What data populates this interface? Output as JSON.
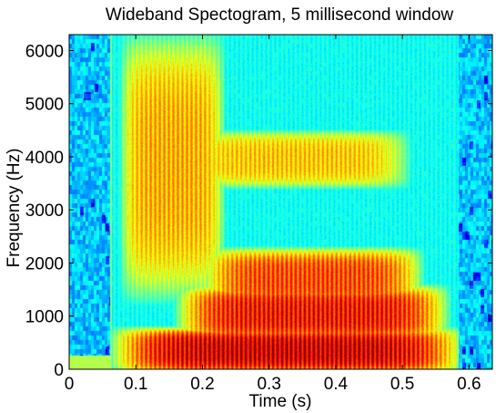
{
  "chart_data": {
    "type": "heatmap",
    "title": "Wideband Spectogram, 5 millisecond window",
    "xlabel": "Time (s)",
    "ylabel": "Frequency (Hz)",
    "xlim": [
      0,
      0.635
    ],
    "ylim": [
      0,
      6300
    ],
    "xticks": [
      0,
      0.1,
      0.2,
      0.3,
      0.4,
      0.5,
      0.6
    ],
    "xtick_labels": [
      "0",
      "0.1",
      "0.2",
      "0.3",
      "0.4",
      "0.5",
      "0.6"
    ],
    "yticks": [
      0,
      1000,
      2000,
      3000,
      4000,
      5000,
      6000
    ],
    "ytick_labels": [
      "0",
      "1000",
      "2000",
      "3000",
      "4000",
      "5000",
      "6000"
    ],
    "colormap": "jet",
    "colors": {
      "low": "#00007f",
      "mid": "#7fff7f",
      "high": "#7f0000",
      "background": "#2fd5ff"
    },
    "grid": false,
    "legend": "none",
    "features": {
      "speech_onset_s": 0.063,
      "speech_offset_s": 0.585,
      "pitch_striation_period_s": 0.0068,
      "energy_regions": [
        {
          "t0": 0.07,
          "t1": 0.585,
          "f0": 0,
          "f1": 700,
          "level": 1.0
        },
        {
          "t0": 0.17,
          "t1": 0.56,
          "f0": 600,
          "f1": 1500,
          "level": 0.9
        },
        {
          "t0": 0.21,
          "t1": 0.52,
          "f0": 1200,
          "f1": 2200,
          "level": 0.78
        },
        {
          "t0": 0.09,
          "t1": 0.22,
          "f0": 1300,
          "f1": 6300,
          "level": 0.6
        },
        {
          "t0": 0.18,
          "t1": 0.5,
          "f0": 3500,
          "f1": 4400,
          "level": 0.55
        }
      ]
    }
  }
}
